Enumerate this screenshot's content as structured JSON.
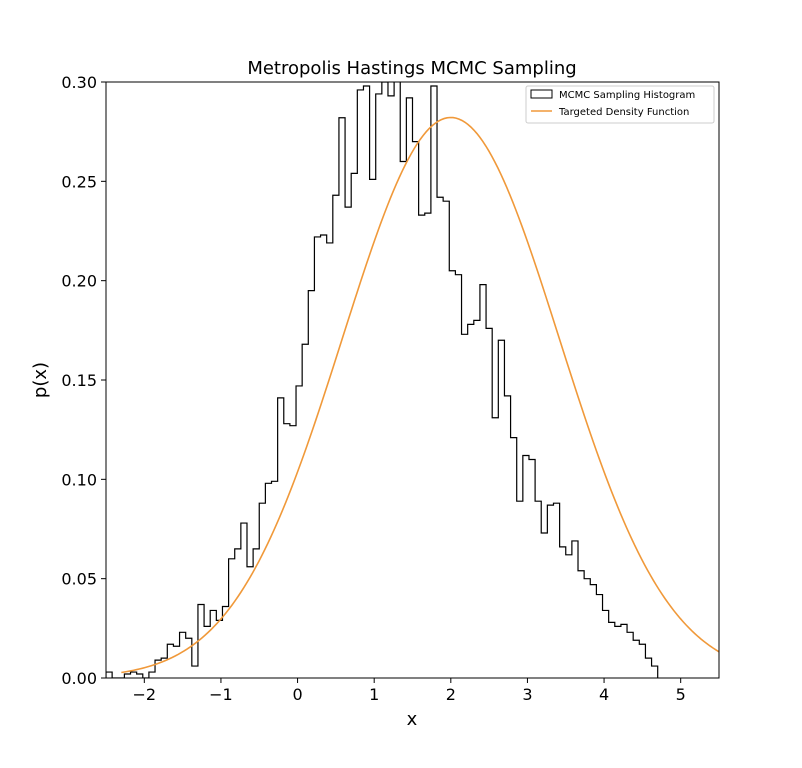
{
  "chart_data": {
    "type": "bar",
    "title": "Metropolis Hastings MCMC Sampling",
    "xlabel": "x",
    "ylabel": "p(x)",
    "xlim": [
      -2.5,
      5.5
    ],
    "ylim": [
      0,
      0.3
    ],
    "xticks": [
      -2,
      -1,
      0,
      1,
      2,
      3,
      4,
      5
    ],
    "xtick_labels": [
      "−2",
      "−1",
      "0",
      "1",
      "2",
      "3",
      "4",
      "5"
    ],
    "yticks": [
      0.0,
      0.05,
      0.1,
      0.15,
      0.2,
      0.25,
      0.3
    ],
    "ytick_labels": [
      "0.00",
      "0.05",
      "0.10",
      "0.15",
      "0.20",
      "0.25",
      "0.30"
    ],
    "grid": false,
    "legend_position": "top-right",
    "series": [
      {
        "name": "MCMC Sampling Histogram",
        "kind": "step-histogram",
        "color": "#000000",
        "bin_start": -2.5,
        "bin_width": 0.08,
        "values": [
          0.003,
          0.0,
          0.0,
          0.002,
          0.003,
          0.002,
          0.0,
          0.003,
          0.009,
          0.01,
          0.017,
          0.016,
          0.023,
          0.02,
          0.006,
          0.037,
          0.026,
          0.034,
          0.029,
          0.036,
          0.06,
          0.065,
          0.078,
          0.056,
          0.065,
          0.088,
          0.098,
          0.099,
          0.141,
          0.128,
          0.127,
          0.147,
          0.168,
          0.195,
          0.222,
          0.223,
          0.219,
          0.243,
          0.282,
          0.237,
          0.254,
          0.296,
          0.298,
          0.251,
          0.294,
          0.3,
          0.293,
          0.303,
          0.26,
          0.292,
          0.27,
          0.233,
          0.234,
          0.298,
          0.242,
          0.24,
          0.205,
          0.203,
          0.173,
          0.178,
          0.18,
          0.198,
          0.176,
          0.131,
          0.17,
          0.142,
          0.121,
          0.089,
          0.112,
          0.11,
          0.089,
          0.073,
          0.087,
          0.088,
          0.066,
          0.062,
          0.069,
          0.054,
          0.05,
          0.047,
          0.042,
          0.034,
          0.028,
          0.026,
          0.027,
          0.023,
          0.019,
          0.017,
          0.01,
          0.006
        ]
      },
      {
        "name": "Targeted Density Function",
        "kind": "line",
        "color": "#f0993a",
        "curve": {
          "distribution": "normal",
          "mean": 2.0,
          "std": 1.414,
          "x_start": -2.3,
          "x_end": 5.5
        }
      }
    ]
  }
}
